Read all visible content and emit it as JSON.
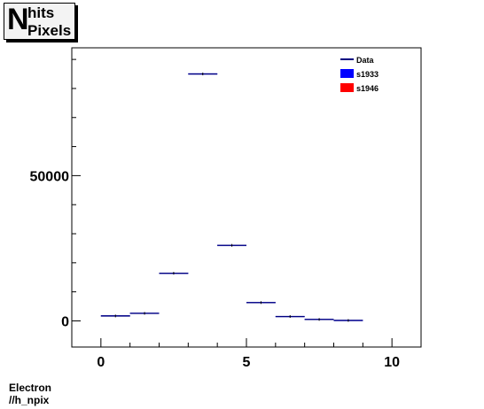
{
  "title": {
    "main": "N",
    "superscript": "hits",
    "subscript": "Pixels"
  },
  "footer": {
    "line1": "Electron",
    "line2": "//h_npix"
  },
  "chart_data": {
    "type": "histogram",
    "xlim": [
      -1,
      11
    ],
    "ylim": [
      -9000,
      94000
    ],
    "x_ticks": [
      0,
      5,
      10
    ],
    "y_ticks": [
      0,
      50000
    ],
    "x_tick_labels": [
      "0",
      "5",
      "10"
    ],
    "y_tick_labels": [
      "0",
      "50000"
    ],
    "grid": false,
    "legend_position": "top-right",
    "bins": [
      {
        "x0": 0,
        "x1": 1,
        "value": 1700
      },
      {
        "x0": 1,
        "x1": 2,
        "value": 2600
      },
      {
        "x0": 2,
        "x1": 3,
        "value": 16400
      },
      {
        "x0": 3,
        "x1": 4,
        "value": 85000
      },
      {
        "x0": 4,
        "x1": 5,
        "value": 26000
      },
      {
        "x0": 5,
        "x1": 6,
        "value": 6300
      },
      {
        "x0": 6,
        "x1": 7,
        "value": 1500
      },
      {
        "x0": 7,
        "x1": 8,
        "value": 500
      },
      {
        "x0": 8,
        "x1": 9,
        "value": 150
      }
    ],
    "legend": [
      {
        "label": "Data",
        "style": "line",
        "color": "#000080"
      },
      {
        "label": "s1933",
        "style": "fill",
        "color": "#0000ff"
      },
      {
        "label": "s1946",
        "style": "fill",
        "color": "#ff0000"
      }
    ]
  }
}
